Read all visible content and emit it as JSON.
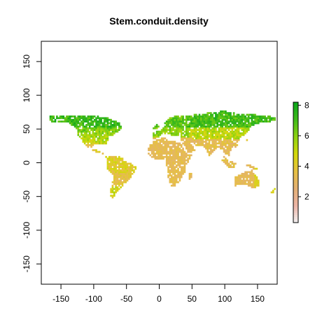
{
  "map": {
    "title": "Stem.conduit.density",
    "variable": "Stem.conduit.density",
    "x_range": [
      -180,
      180
    ],
    "y_range": [
      -180,
      180
    ],
    "x_ticks": [
      -150,
      -100,
      -50,
      0,
      50,
      100,
      150
    ],
    "y_ticks": [
      -150,
      -100,
      -50,
      0,
      50,
      100,
      150
    ],
    "legend": {
      "range": [
        0.3,
        8.2
      ],
      "ticks": [
        2,
        4,
        6,
        8
      ],
      "palette": [
        "#f2f2f2",
        "#ecb4a6",
        "#e3b074",
        "#e6c043",
        "#d4d80a",
        "#8fd311",
        "#3fba1a",
        "#0aa61a"
      ]
    },
    "regions": [
      {
        "name": "north-america-boreal",
        "value": 7.2
      },
      {
        "name": "north-america-temperate",
        "value": 5.0
      },
      {
        "name": "central-america",
        "value": 4.0
      },
      {
        "name": "south-america",
        "value": 3.6
      },
      {
        "name": "europe",
        "value": 6.0
      },
      {
        "name": "africa",
        "value": 3.3
      },
      {
        "name": "asia-boreal",
        "value": 7.0
      },
      {
        "name": "asia-south",
        "value": 3.4
      },
      {
        "name": "australia",
        "value": 3.2
      }
    ]
  }
}
